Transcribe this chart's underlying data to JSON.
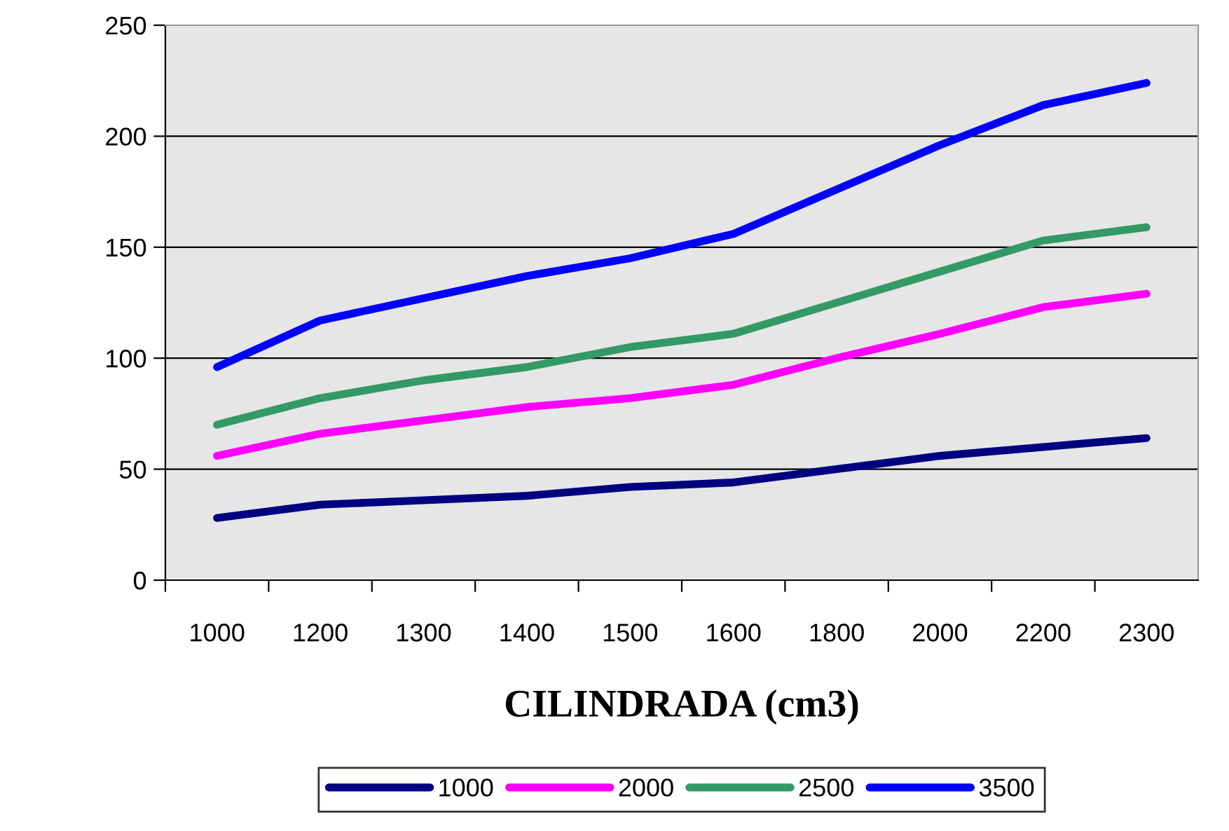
{
  "chart_data": {
    "type": "line",
    "xlabel": "CILINDRADA (cm3)",
    "categories": [
      "1000",
      "1200",
      "1300",
      "1400",
      "1500",
      "1600",
      "1800",
      "2000",
      "2200",
      "2300"
    ],
    "series": [
      {
        "name": "1000",
        "color": "#000080",
        "values": [
          28,
          34,
          36,
          38,
          42,
          44,
          50,
          56,
          60,
          64
        ]
      },
      {
        "name": "2000",
        "color": "#ff00ff",
        "values": [
          56,
          66,
          72,
          78,
          82,
          88,
          100,
          111,
          123,
          129
        ]
      },
      {
        "name": "2500",
        "color": "#339966",
        "values": [
          70,
          82,
          90,
          96,
          105,
          111,
          125,
          139,
          153,
          159
        ]
      },
      {
        "name": "3500",
        "color": "#0000ff",
        "values": [
          96,
          117,
          127,
          137,
          145,
          156,
          176,
          196,
          214,
          224
        ]
      }
    ],
    "ylim": [
      0,
      250
    ],
    "yticks": [
      0,
      50,
      100,
      150,
      200,
      250
    ],
    "grid": "y",
    "legend": "bottom",
    "marker": "none",
    "line_style": "solid"
  }
}
